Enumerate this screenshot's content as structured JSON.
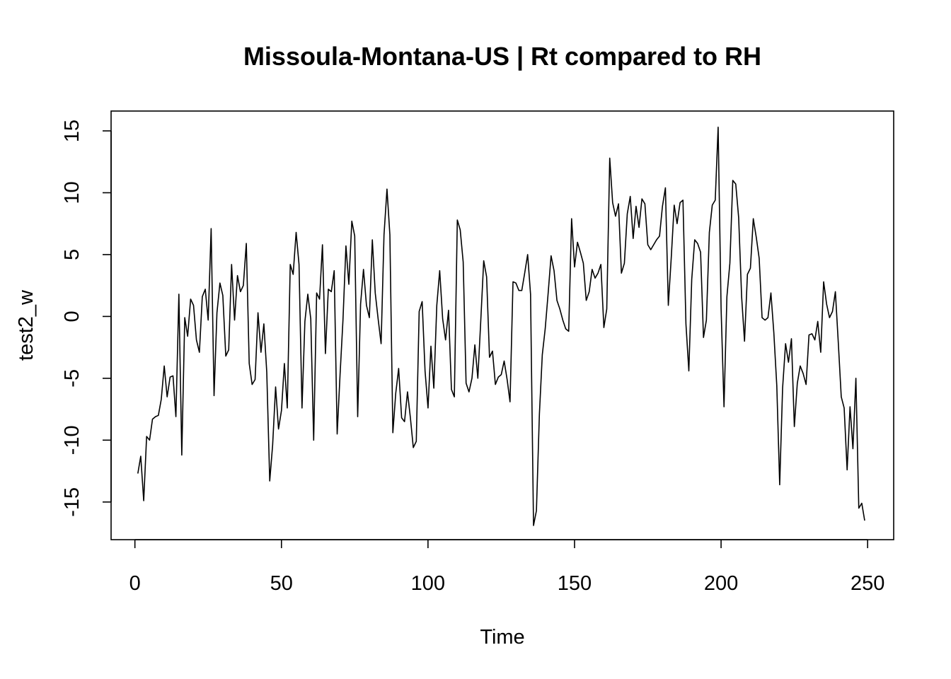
{
  "chart_data": {
    "type": "line",
    "title": "Missoula-Montana-US | Rt compared to RH",
    "xlabel": "Time",
    "ylabel": "test2_w",
    "xlim": [
      1,
      248
    ],
    "ylim": [
      -16.9,
      15.3
    ],
    "x_ticks": [
      0,
      50,
      100,
      150,
      200,
      250
    ],
    "y_ticks": [
      -15,
      -10,
      -5,
      0,
      5,
      10,
      15
    ],
    "grid": false,
    "legend": "none",
    "series": [
      {
        "values": [
          -12.7,
          -11.3,
          -14.9,
          -9.7,
          -10.0,
          -8.3,
          -8.1,
          -8.0,
          -6.7,
          -4.0,
          -6.5,
          -4.9,
          -4.8,
          -8.1,
          1.8,
          -11.2,
          -0.1,
          -1.6,
          1.4,
          0.9,
          -1.9,
          -2.9,
          1.6,
          2.2,
          -0.3,
          7.1,
          -6.4,
          0.3,
          2.7,
          1.7,
          -3.2,
          -2.7,
          4.2,
          -0.3,
          3.3,
          2.0,
          2.5,
          5.9,
          -3.8,
          -5.5,
          -5.1,
          0.3,
          -2.9,
          -0.6,
          -4.5,
          -13.3,
          -10.4,
          -5.7,
          -9.1,
          -7.6,
          -3.8,
          -7.4,
          4.2,
          3.4,
          6.8,
          4.2,
          -7.4,
          -0.4,
          1.8,
          -0.2,
          -10.0,
          1.9,
          1.4,
          5.8,
          -3.0,
          2.2,
          2.0,
          3.7,
          -9.5,
          -4.7,
          -0.3,
          5.7,
          2.6,
          7.7,
          6.5,
          -8.1,
          1.0,
          3.8,
          0.9,
          -0.1,
          6.2,
          1.9,
          -0.2,
          -2.2,
          6.6,
          10.3,
          6.6,
          -9.4,
          -6.2,
          -4.2,
          -8.2,
          -8.5,
          -6.1,
          -8.2,
          -10.6,
          -10.1,
          0.4,
          1.2,
          -4.4,
          -7.4,
          -2.4,
          -5.8,
          0.9,
          3.7,
          -0.2,
          -1.9,
          0.5,
          -5.9,
          -6.5,
          7.8,
          7.0,
          4.4,
          -5.4,
          -6.1,
          -5.0,
          -2.3,
          -5.0,
          -0.4,
          4.5,
          3.2,
          -3.3,
          -2.8,
          -5.5,
          -4.9,
          -4.7,
          -3.6,
          -5.1,
          -6.9,
          2.8,
          2.7,
          2.1,
          2.1,
          3.5,
          5.0,
          1.8,
          -16.9,
          -15.7,
          -7.9,
          -3.1,
          -1.0,
          1.9,
          4.9,
          3.7,
          1.3,
          0.6,
          -0.3,
          -1.0,
          -1.2,
          7.9,
          4.0,
          6.0,
          5.2,
          4.3,
          1.3,
          2.0,
          3.8,
          3.1,
          3.5,
          4.2,
          -0.9,
          0.6,
          12.8,
          9.2,
          8.1,
          9.1,
          3.5,
          4.3,
          8.3,
          9.7,
          6.3,
          8.9,
          7.2,
          9.5,
          9.1,
          5.8,
          5.4,
          5.8,
          6.2,
          6.5,
          8.9,
          10.4,
          0.9,
          4.7,
          9.0,
          7.5,
          9.2,
          9.4,
          -0.6,
          -4.4,
          3.0,
          6.2,
          5.9,
          5.2,
          -1.7,
          -0.3,
          6.8,
          9.0,
          9.4,
          15.3,
          0.6,
          -7.3,
          1.6,
          4.3,
          11.0,
          10.7,
          8.0,
          1.6,
          -2.0,
          3.4,
          3.9,
          7.9,
          6.4,
          4.7,
          -0.1,
          -0.3,
          -0.1,
          1.9,
          -1.3,
          -5.6,
          -13.6,
          -5.8,
          -2.2,
          -3.7,
          -1.8,
          -8.9,
          -5.4,
          -4.0,
          -4.6,
          -5.5,
          -1.5,
          -1.4,
          -1.9,
          -0.4,
          -2.9,
          2.8,
          1.0,
          -0.1,
          0.4,
          2.0,
          -2.1,
          -6.5,
          -7.4,
          -12.4,
          -7.3,
          -10.7,
          -5.0,
          -15.5,
          -15.1,
          -16.5
        ]
      }
    ]
  }
}
